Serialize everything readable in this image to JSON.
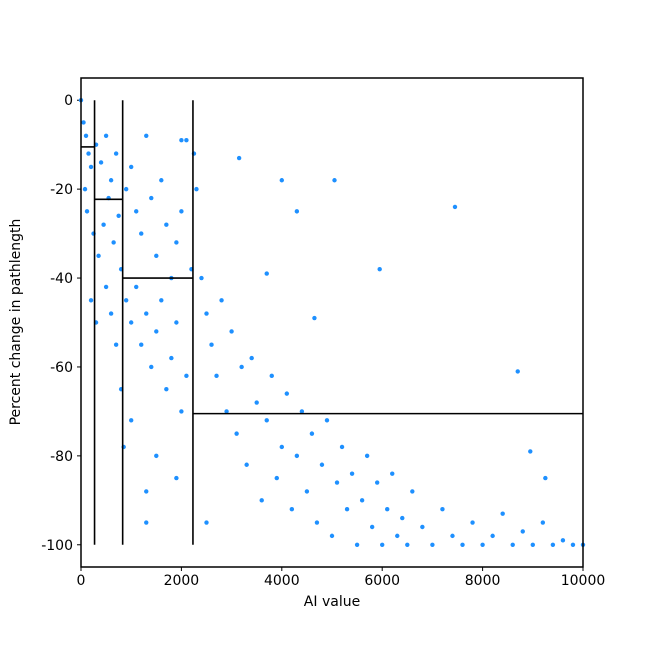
{
  "chart_data": {
    "type": "scatter",
    "xlabel": "AI value",
    "ylabel": "Percent change in pathlength",
    "xlim": [
      0,
      10000
    ],
    "ylim": [
      -105,
      5
    ],
    "xticks": [
      0,
      2000,
      4000,
      6000,
      8000,
      10000
    ],
    "yticks": [
      0,
      -20,
      -40,
      -60,
      -80,
      -100
    ],
    "color": "#1e90ff",
    "line_color": "#000000",
    "x": [
      0,
      50,
      100,
      150,
      200,
      80,
      120,
      250,
      300,
      400,
      500,
      600,
      700,
      350,
      450,
      550,
      650,
      750,
      800,
      900,
      1000,
      1100,
      1200,
      1300,
      1400,
      1500,
      1600,
      1700,
      1800,
      1900,
      2000,
      2100,
      2200,
      900,
      1000,
      1100,
      1200,
      1300,
      1400,
      1500,
      1600,
      1700,
      1800,
      1900,
      2000,
      2100,
      200,
      300,
      500,
      700,
      800,
      600,
      850,
      1000,
      1300,
      1500,
      1900,
      2400,
      2500,
      2600,
      2700,
      2800,
      2900,
      3000,
      3100,
      3200,
      3300,
      3400,
      3500,
      3600,
      3700,
      3800,
      3900,
      4000,
      4100,
      4200,
      4300,
      4400,
      4500,
      4600,
      4700,
      4800,
      4900,
      5000,
      5100,
      5200,
      5300,
      5400,
      5500,
      5600,
      5700,
      5800,
      5900,
      6000,
      6100,
      6200,
      6300,
      6400,
      6500,
      6600,
      6800,
      7000,
      7200,
      7400,
      7600,
      7800,
      8000,
      8200,
      8400,
      8600,
      8800,
      9000,
      9200,
      9400,
      9600,
      9800,
      10000,
      3150,
      4000,
      4300,
      5050,
      5950,
      7450,
      8700,
      8950,
      9250,
      2250,
      3700,
      4650,
      2500,
      1300,
      2300,
      2000
    ],
    "y": [
      0,
      -5,
      -8,
      -12,
      -15,
      -20,
      -25,
      -30,
      -10,
      -14,
      -8,
      -18,
      -12,
      -35,
      -28,
      -22,
      -32,
      -26,
      -38,
      -20,
      -15,
      -25,
      -30,
      -8,
      -22,
      -35,
      -18,
      -28,
      -40,
      -32,
      -25,
      -9,
      -38,
      -45,
      -50,
      -42,
      -55,
      -48,
      -60,
      -52,
      -45,
      -65,
      -58,
      -50,
      -70,
      -62,
      -45,
      -50,
      -42,
      -55,
      -65,
      -48,
      -78,
      -72,
      -88,
      -80,
      -85,
      -40,
      -48,
      -55,
      -62,
      -45,
      -70,
      -52,
      -75,
      -60,
      -82,
      -58,
      -68,
      -90,
      -72,
      -62,
      -85,
      -78,
      -66,
      -92,
      -80,
      -70,
      -88,
      -75,
      -95,
      -82,
      -72,
      -98,
      -86,
      -78,
      -92,
      -84,
      -100,
      -90,
      -80,
      -96,
      -86,
      -100,
      -92,
      -84,
      -98,
      -94,
      -100,
      -88,
      -96,
      -100,
      -92,
      -98,
      -100,
      -95,
      -100,
      -98,
      -93,
      -100,
      -97,
      -100,
      -95,
      -100,
      -99,
      -100,
      -100,
      -13,
      -18,
      -25,
      -18,
      -38,
      -24,
      -61,
      -79,
      -85,
      -12,
      -39,
      -49,
      -95,
      -95,
      -20,
      -9
    ],
    "lines": [
      {
        "x": [
          270,
          270
        ],
        "y": [
          0,
          -100
        ]
      },
      {
        "x": [
          830,
          830
        ],
        "y": [
          0,
          -100
        ]
      },
      {
        "x": [
          2230,
          2230
        ],
        "y": [
          0,
          -100
        ]
      },
      {
        "x": [
          0,
          270
        ],
        "y": [
          -10.5,
          -10.5
        ]
      },
      {
        "x": [
          270,
          830
        ],
        "y": [
          -22.3,
          -22.3
        ]
      },
      {
        "x": [
          830,
          2230
        ],
        "y": [
          -40,
          -40
        ]
      },
      {
        "x": [
          2230,
          10000
        ],
        "y": [
          -70.5,
          -70.5
        ]
      }
    ]
  }
}
